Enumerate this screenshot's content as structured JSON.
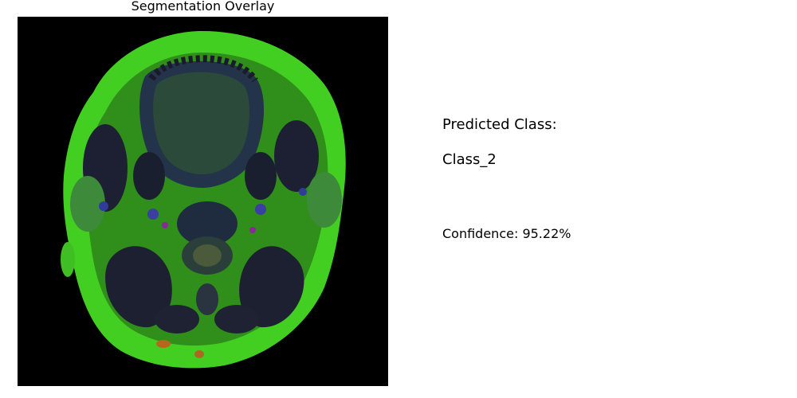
{
  "panel": {
    "title": "Segmentation Overlay"
  },
  "prediction": {
    "heading": "Predicted Class:",
    "class_name": "Class_2",
    "confidence_label": "Confidence: 95.22%"
  },
  "colors": {
    "background": "#000000",
    "tissue_overlay": "#3bbf1e",
    "bright_overlay": "#45d321",
    "dark_structure": "#1c1f3a",
    "blue_structure": "#2f3c7a",
    "highlight_spots": "#b8661e"
  }
}
